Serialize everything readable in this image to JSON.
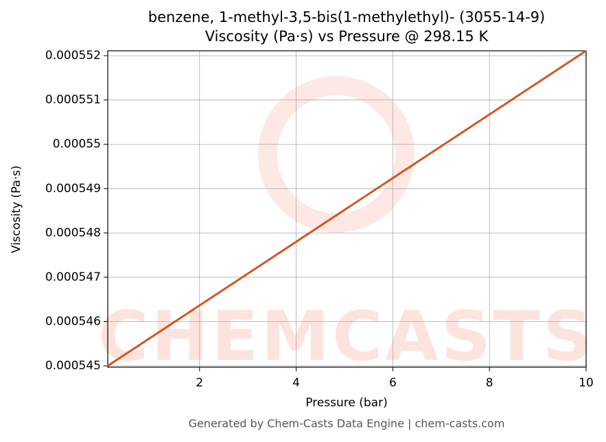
{
  "chart_data": {
    "type": "line",
    "title": [
      "benzene, 1-methyl-3,5-bis(1-methylethyl)- (3055-14-9)",
      "Viscosity (Pa·s) vs Pressure @ 298.15 K"
    ],
    "x_label": "Pressure (bar)",
    "y_label": "Viscosity (Pa·s)",
    "x": [
      0.1,
      10
    ],
    "series": [
      {
        "name": "Viscosity",
        "color": "#d4541f",
        "values": [
          0.000545,
          0.00055211
        ]
      }
    ],
    "xlim": [
      0.1,
      10
    ],
    "xticks": [
      2,
      4,
      6,
      8,
      10
    ],
    "ylim": [
      0.00054497,
      0.00055211
    ],
    "yticks": [
      0.000545,
      0.000546,
      0.000547,
      0.000548,
      0.000549,
      0.00055,
      0.000551,
      0.000552
    ],
    "grid": true,
    "watermark": "CHEMCASTS",
    "footer": "Generated by Chem-Casts Data Engine | chem-casts.com"
  }
}
